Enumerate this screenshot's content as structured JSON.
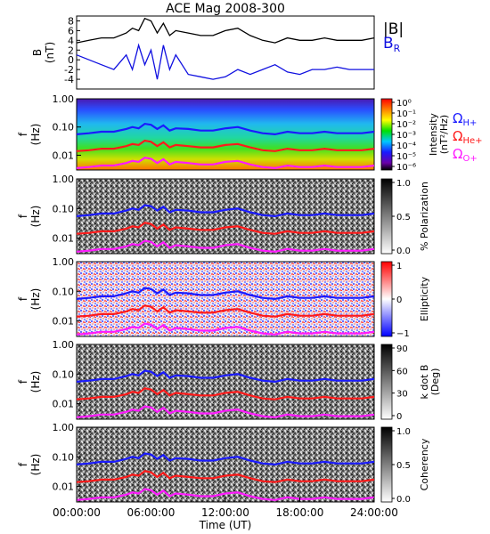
{
  "title": "ACE Mag 2008-300",
  "x_axis": {
    "label": "Time (UT)",
    "ticks": [
      "00:00:00",
      "06:00:00",
      "12:00:00",
      "18:00:00",
      "24:00:00"
    ],
    "range_hours": [
      0,
      24
    ]
  },
  "freq_axis": {
    "label_line1": "f",
    "label_line2": "(Hz)",
    "ticks": [
      "1.00",
      "0.10",
      "0.01"
    ],
    "scale": "log",
    "range_hz": [
      0.003,
      1.0
    ]
  },
  "chart_data": [
    {
      "type": "line",
      "panel": "B",
      "ylabel_line1": "B",
      "ylabel_line2": "(nT)",
      "yticks": [
        8,
        6,
        4,
        2,
        0,
        -2,
        -4
      ],
      "ylim": [
        -6,
        9
      ],
      "legend": [
        {
          "name": "|B|",
          "color": "#000000"
        },
        {
          "name": "B",
          "subscript": "R",
          "color": "#1010e0"
        }
      ],
      "series": [
        {
          "name": "|B|",
          "color": "#000000",
          "x": [
            0,
            1,
            2,
            3,
            4,
            4.5,
            5,
            5.5,
            6,
            6.5,
            7,
            7.5,
            8,
            9,
            10,
            11,
            12,
            13,
            14,
            15,
            16,
            17,
            18,
            19,
            20,
            21,
            22,
            23,
            24
          ],
          "y": [
            3.5,
            4,
            4.5,
            4.5,
            5.5,
            6.5,
            6,
            8.5,
            8,
            5.5,
            7.5,
            5,
            6,
            5.5,
            5,
            5,
            6,
            6.5,
            5,
            4,
            3.5,
            4.5,
            4,
            4,
            4.5,
            4,
            4,
            4,
            4.5
          ]
        },
        {
          "name": "B",
          "color": "#1010e0",
          "x": [
            0,
            1,
            2,
            3,
            4,
            4.5,
            5,
            5.5,
            6,
            6.5,
            7,
            7.5,
            8,
            9,
            10,
            11,
            12,
            13,
            14,
            15,
            16,
            17,
            18,
            19,
            20,
            21,
            22,
            23,
            24
          ],
          "y": [
            1,
            0,
            -1,
            -2,
            1,
            -2,
            3,
            -1,
            2,
            -4,
            3,
            -2,
            1,
            -3,
            -3.5,
            -4,
            -3.5,
            -2,
            -3,
            -2,
            -1,
            -2.5,
            -3,
            -2,
            -2,
            -1.5,
            -2,
            -2,
            -2
          ]
        }
      ]
    },
    {
      "type": "heatmap",
      "panel": "intensity",
      "colorbar": {
        "label_line1": "Intensity",
        "label_line2": "(nT²/Hz)",
        "ticks": [
          "10⁰",
          "10⁻¹",
          "10⁻²",
          "10⁻³",
          "10⁻⁴",
          "10⁻⁵",
          "10⁻⁶"
        ],
        "scale": "log"
      },
      "gyro_legend": [
        {
          "symbol": "Ω",
          "sub": "H+",
          "color": "#1a1aff"
        },
        {
          "symbol": "Ω",
          "sub": "He+",
          "color": "#ff1a1a"
        },
        {
          "symbol": "Ω",
          "sub": "O+",
          "color": "#ff1aff"
        }
      ]
    },
    {
      "type": "heatmap",
      "panel": "polarization",
      "colorbar": {
        "label": "% Polarization",
        "ticks": [
          "1.0",
          "0.5",
          "0.0"
        ]
      }
    },
    {
      "type": "heatmap",
      "panel": "ellipticity",
      "colorbar": {
        "label": "Ellipticity",
        "ticks": [
          "1",
          "0",
          "−1"
        ]
      }
    },
    {
      "type": "heatmap",
      "panel": "kdotb",
      "colorbar": {
        "label_line1": "k dot B",
        "label_line2": "(Deg)",
        "ticks": [
          "90",
          "60",
          "30",
          "0"
        ]
      }
    },
    {
      "type": "heatmap",
      "panel": "coherency",
      "colorbar": {
        "label": "Coherency",
        "ticks": [
          "1.0",
          "0.5",
          "0.0"
        ]
      }
    }
  ],
  "gyrofrequency_lines": {
    "hours": [
      0,
      1,
      2,
      3,
      4,
      4.5,
      5,
      5.5,
      6,
      6.5,
      7,
      7.5,
      8,
      9,
      10,
      11,
      12,
      13,
      14,
      15,
      16,
      17,
      18,
      19,
      20,
      21,
      22,
      23,
      24
    ],
    "H_plus_hz": [
      0.055,
      0.06,
      0.068,
      0.068,
      0.085,
      0.1,
      0.09,
      0.13,
      0.12,
      0.085,
      0.115,
      0.075,
      0.09,
      0.085,
      0.075,
      0.075,
      0.09,
      0.1,
      0.075,
      0.06,
      0.055,
      0.068,
      0.06,
      0.06,
      0.068,
      0.06,
      0.06,
      0.06,
      0.068
    ],
    "He_plus_hz": [
      0.014,
      0.015,
      0.017,
      0.017,
      0.021,
      0.025,
      0.023,
      0.033,
      0.03,
      0.021,
      0.029,
      0.019,
      0.023,
      0.021,
      0.019,
      0.019,
      0.023,
      0.025,
      0.019,
      0.015,
      0.014,
      0.017,
      0.015,
      0.015,
      0.017,
      0.015,
      0.015,
      0.015,
      0.017
    ],
    "O_plus_hz": [
      0.0035,
      0.0038,
      0.0043,
      0.0043,
      0.0053,
      0.0063,
      0.0058,
      0.0082,
      0.0075,
      0.0053,
      0.0072,
      0.0047,
      0.0058,
      0.0053,
      0.0047,
      0.0047,
      0.0058,
      0.0063,
      0.0047,
      0.0038,
      0.0035,
      0.0043,
      0.0038,
      0.0038,
      0.0043,
      0.0038,
      0.0038,
      0.0038,
      0.0043
    ]
  }
}
